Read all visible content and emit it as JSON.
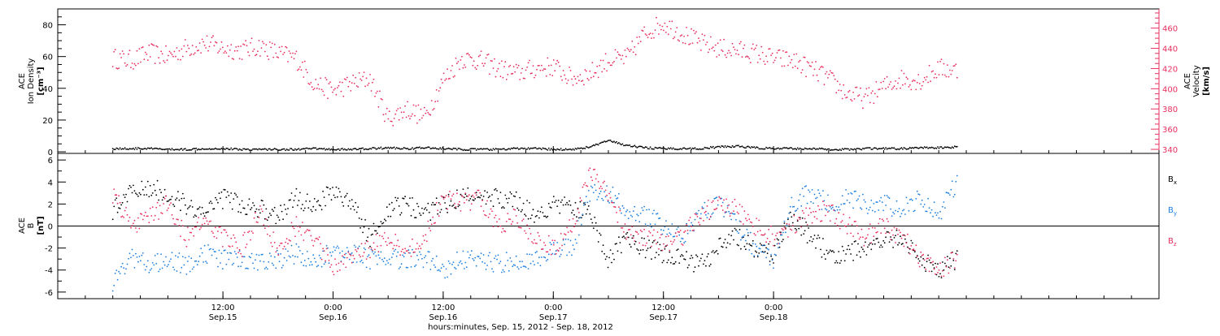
{
  "chart_data": [
    {
      "type": "scatter",
      "panel": "top",
      "ylabel_left": [
        "ACE",
        "Ion Density",
        "[cm⁻³]"
      ],
      "ylabel_right": [
        "ACE",
        "Velocity",
        "[km/s]"
      ],
      "ylim_left": [
        -1,
        90
      ],
      "yticks_left": [
        0,
        20,
        40,
        60,
        80
      ],
      "ylim_right": [
        336,
        479
      ],
      "yticks_right": [
        340,
        360,
        380,
        400,
        420,
        440,
        460
      ],
      "grid": false,
      "series": [
        {
          "name": "",
          "axis": "right",
          "color": "#e8305f",
          "x": [
            0,
            2,
            4,
            6,
            8,
            10,
            12,
            14,
            16,
            18,
            20,
            22,
            24,
            26,
            28,
            30,
            32,
            34,
            36,
            38,
            40,
            42,
            44,
            46,
            48,
            50,
            52,
            54,
            56,
            58,
            60,
            62,
            64,
            66,
            68,
            70,
            72,
            74,
            76,
            78,
            80,
            82,
            84,
            86,
            88,
            90,
            92
          ],
          "y": [
            430,
            428,
            435,
            432,
            440,
            445,
            440,
            438,
            442,
            435,
            430,
            405,
            398,
            405,
            410,
            370,
            380,
            372,
            408,
            430,
            428,
            420,
            415,
            420,
            422,
            410,
            415,
            428,
            430,
            455,
            465,
            455,
            445,
            440,
            438,
            435,
            430,
            428,
            420,
            410,
            395,
            390,
            402,
            410,
            408,
            420,
            418
          ]
        },
        {
          "name": "",
          "axis": "left",
          "color": "#000000",
          "x": [
            0,
            2,
            4,
            6,
            8,
            10,
            12,
            14,
            16,
            18,
            20,
            22,
            24,
            26,
            28,
            30,
            32,
            34,
            36,
            38,
            40,
            42,
            44,
            46,
            48,
            50,
            52,
            54,
            56,
            58,
            60,
            62,
            64,
            66,
            68,
            70,
            72,
            74,
            76,
            78,
            80,
            82,
            84,
            86,
            88,
            90,
            92
          ],
          "y": [
            2,
            2,
            2,
            1.5,
            1.5,
            2,
            2,
            1.5,
            1.5,
            1.5,
            1.5,
            2,
            1.5,
            1.5,
            2,
            2.5,
            2,
            2.5,
            2,
            1.5,
            1.5,
            1.5,
            2,
            2,
            1.5,
            1.5,
            3,
            7,
            4,
            2.5,
            2,
            2,
            2,
            3,
            3.5,
            2.5,
            2,
            2,
            2,
            1.5,
            1.5,
            2,
            2,
            2,
            2.5,
            2.5,
            3
          ]
        }
      ]
    },
    {
      "type": "scatter",
      "panel": "bottom",
      "ylabel": [
        "ACE",
        "B",
        "[nT]"
      ],
      "ylim": [
        -6.6,
        6.6
      ],
      "yticks": [
        -6,
        -4,
        -2,
        0,
        2,
        4,
        6
      ],
      "zero_line": true,
      "grid": false,
      "series": [
        {
          "name": "Bx",
          "label_main": "B",
          "label_sub": "x",
          "color": "#000000",
          "x": [
            0,
            2,
            4,
            6,
            8,
            10,
            12,
            14,
            16,
            18,
            20,
            22,
            24,
            26,
            28,
            30,
            32,
            34,
            36,
            38,
            40,
            42,
            44,
            46,
            48,
            50,
            52,
            54,
            56,
            58,
            60,
            62,
            64,
            66,
            68,
            70,
            72,
            74,
            76,
            78,
            80,
            82,
            84,
            86,
            88,
            90,
            92
          ],
          "y": [
            1.5,
            3,
            3.5,
            3,
            2,
            1,
            2.5,
            2,
            1.5,
            1,
            2.5,
            2,
            3,
            2,
            -1,
            1.5,
            2,
            1,
            2,
            2.5,
            3,
            2.5,
            2.5,
            1,
            2,
            2,
            1,
            -3,
            -1,
            -2,
            -2.5,
            -3,
            -3.5,
            -2,
            -1,
            -2,
            -2.5,
            1,
            -1,
            -2.5,
            -2.5,
            -2,
            -1.5,
            -1,
            -3,
            -4,
            -3
          ]
        },
        {
          "name": "By",
          "label_main": "B",
          "label_sub": "y",
          "color": "#1e7fe0",
          "x": [
            0,
            2,
            4,
            6,
            8,
            10,
            12,
            14,
            16,
            18,
            20,
            22,
            24,
            26,
            28,
            30,
            32,
            34,
            36,
            38,
            40,
            42,
            44,
            46,
            48,
            50,
            52,
            54,
            56,
            58,
            60,
            62,
            64,
            66,
            68,
            70,
            72,
            74,
            76,
            78,
            80,
            82,
            84,
            86,
            88,
            90,
            92
          ],
          "y": [
            -5,
            -3,
            -3.5,
            -3,
            -3.5,
            -2.5,
            -3,
            -3,
            -3.5,
            -3,
            -2.5,
            -3,
            -2.5,
            -2.5,
            -3,
            -3,
            -3,
            -3,
            -4,
            -3,
            -3,
            -3.5,
            -3,
            -3,
            -2,
            -2,
            3,
            3,
            1.5,
            1,
            0,
            -1,
            1,
            2,
            0,
            -2,
            -3,
            2,
            3,
            2,
            2.5,
            2,
            2,
            1.5,
            2.5,
            1,
            4
          ]
        },
        {
          "name": "Bz",
          "label_main": "B",
          "label_sub": "z",
          "color": "#e8305f",
          "x": [
            0,
            2,
            4,
            6,
            8,
            10,
            12,
            14,
            16,
            18,
            20,
            22,
            24,
            26,
            28,
            30,
            32,
            34,
            36,
            38,
            40,
            42,
            44,
            46,
            48,
            50,
            52,
            54,
            56,
            58,
            60,
            62,
            64,
            66,
            68,
            70,
            72,
            74,
            76,
            78,
            80,
            82,
            84,
            86,
            88,
            90,
            92
          ],
          "y": [
            3,
            0,
            1,
            2,
            -1,
            0.5,
            -1,
            -2,
            1,
            -2,
            0,
            -1,
            -4,
            -3,
            -2,
            -1,
            -2.5,
            -1,
            2.5,
            2,
            2.5,
            0,
            1,
            -1,
            -2,
            0,
            5,
            3,
            -0.5,
            -1,
            -1.5,
            -1,
            1,
            2,
            1.5,
            0,
            -1,
            0,
            1,
            1.5,
            0,
            -1,
            0,
            -1,
            -3,
            -4,
            -3
          ]
        }
      ]
    }
  ],
  "x_axis": {
    "xlim": [
      -6,
      114
    ],
    "ticks": [
      {
        "x": 12,
        "line1": "12:00",
        "line2": "Sep.15"
      },
      {
        "x": 24,
        "line1": "0:00",
        "line2": "Sep.16"
      },
      {
        "x": 36,
        "line1": "12:00",
        "line2": "Sep.16"
      },
      {
        "x": 48,
        "line1": "0:00",
        "line2": "Sep.17"
      },
      {
        "x": 60,
        "line1": "12:00",
        "line2": "Sep.17"
      },
      {
        "x": 72,
        "line1": "0:00",
        "line2": "Sep.18"
      }
    ],
    "minor_step": 3,
    "label": "hours:minutes, Sep. 15, 2012 - Sep. 18, 2012"
  },
  "colors": {
    "velocity": "#e8305f",
    "density": "#000000",
    "bx": "#000000",
    "by": "#1e7fe0",
    "bz": "#e8305f"
  }
}
